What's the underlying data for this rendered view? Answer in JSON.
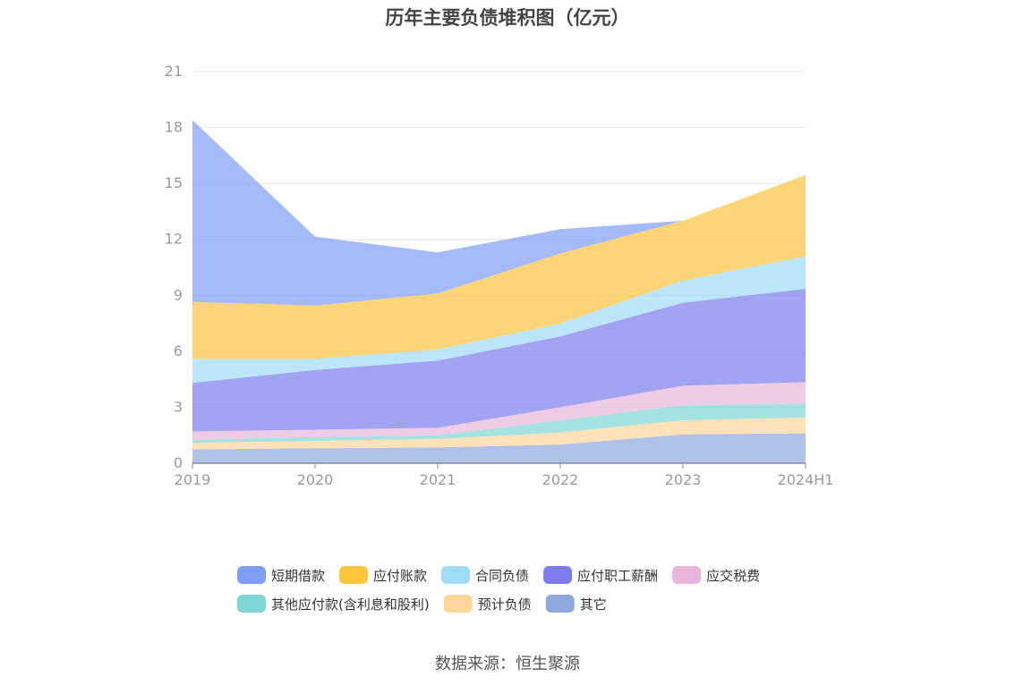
{
  "chart_data": {
    "type": "area",
    "title": "历年主要负债堆积图（亿元）",
    "source": "数据来源：恒生聚源",
    "x": [
      "2019",
      "2020",
      "2021",
      "2022",
      "2023",
      "2024H1"
    ],
    "ylim": [
      0,
      21
    ],
    "yticks": [
      "0",
      "3",
      "6",
      "9",
      "12",
      "15",
      "18",
      "21"
    ],
    "stacked": true,
    "grid": true,
    "legend_position": "bottom",
    "series": [
      {
        "name": "其它",
        "color": "#8fa8dd",
        "values": [
          0.75,
          0.8,
          0.85,
          1.0,
          1.55,
          1.6
        ]
      },
      {
        "name": "预计负债",
        "color": "#ffd699",
        "values": [
          0.35,
          0.4,
          0.45,
          0.65,
          0.75,
          0.85
        ]
      },
      {
        "name": "其他应付款(含利息和股利)",
        "color": "#7fd6d6",
        "values": [
          0.15,
          0.2,
          0.2,
          0.65,
          0.8,
          0.75
        ]
      },
      {
        "name": "应交税费",
        "color": "#e7b6da",
        "values": [
          0.45,
          0.4,
          0.4,
          0.7,
          1.05,
          1.15
        ]
      },
      {
        "name": "应付职工薪酬",
        "color": "#7c7cf0",
        "values": [
          2.6,
          3.2,
          3.6,
          3.8,
          4.45,
          5.0
        ]
      },
      {
        "name": "合同负债",
        "color": "#9fdcf8",
        "values": [
          1.3,
          0.6,
          0.6,
          0.7,
          1.2,
          1.75
        ]
      },
      {
        "name": "应付账款",
        "color": "#ffc53d",
        "values": [
          3.05,
          2.85,
          3.0,
          3.75,
          3.2,
          4.35
        ]
      },
      {
        "name": "短期借款",
        "color": "#7f9ef7",
        "values": [
          9.75,
          3.7,
          2.2,
          1.3,
          0.0,
          0.0
        ]
      }
    ],
    "legend_order": [
      "短期借款",
      "应付账款",
      "合同负债",
      "应付职工薪酬",
      "应交税费",
      "其他应付款(含利息和股利)",
      "预计负债",
      "其它"
    ]
  }
}
